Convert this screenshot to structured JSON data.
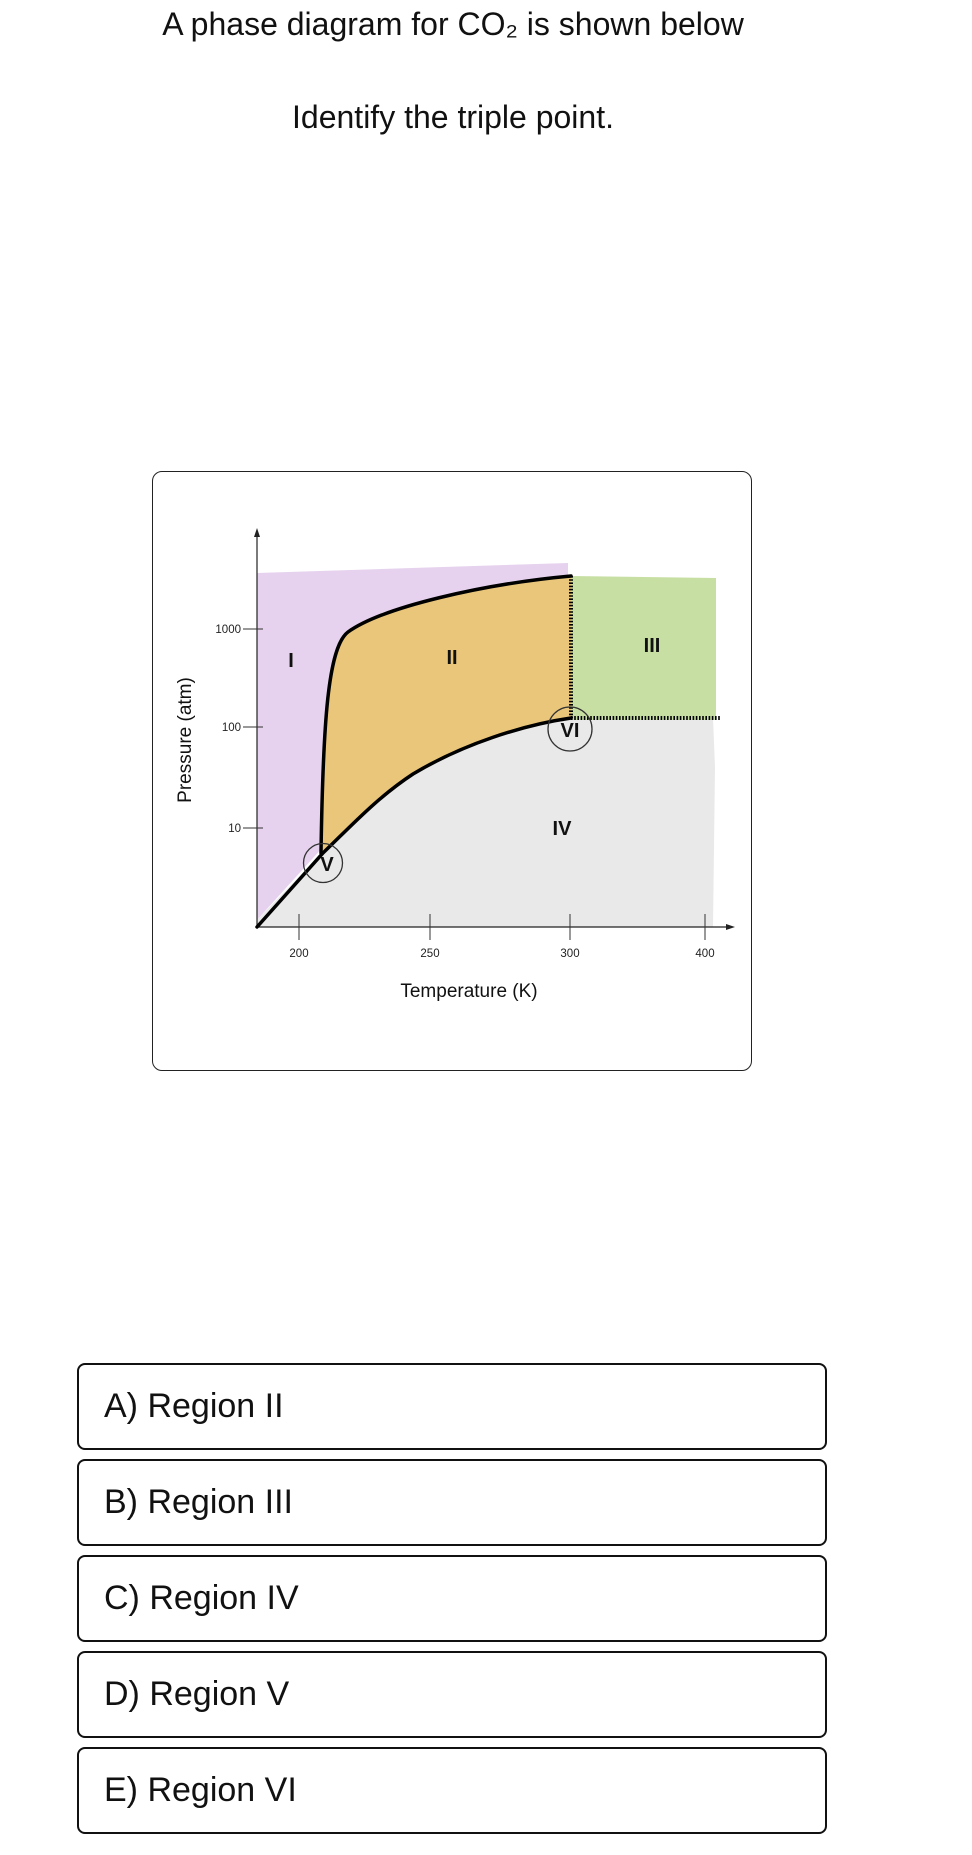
{
  "question": {
    "line1": "A phase diagram for CO₂ is shown below",
    "line2": "Identify the triple point."
  },
  "chart_data": {
    "type": "diagram",
    "xlabel": "Temperature (K)",
    "ylabel": "Pressure (atm)",
    "x_ticks": [
      "200",
      "250",
      "300",
      "400"
    ],
    "y_ticks": [
      "1000",
      "100",
      "10"
    ],
    "y_scale": "log",
    "regions": [
      {
        "label": "I",
        "color": "#e6d2ee"
      },
      {
        "label": "II",
        "color": "#eac67b"
      },
      {
        "label": "III",
        "color": "#c7dfa3"
      },
      {
        "label": "IV",
        "color": "#e9e9e9"
      }
    ],
    "points": [
      {
        "label": "V"
      },
      {
        "label": "VI"
      }
    ]
  },
  "options": [
    {
      "text": "A) Region II"
    },
    {
      "text": "B) Region III"
    },
    {
      "text": "C) Region IV"
    },
    {
      "text": "D) Region V"
    },
    {
      "text": "E) Region VI"
    }
  ]
}
